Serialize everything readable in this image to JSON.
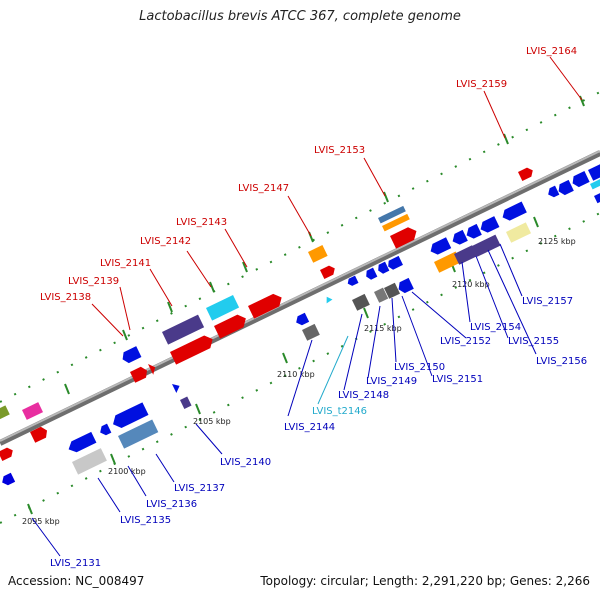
{
  "title": "Lactobacillus brevis ATCC 367, complete genome",
  "footer": {
    "accession": "Accession: NC_008497",
    "topology": "Topology: circular; Length: 2,291,220 bp; Genes: 2,266"
  },
  "colors": {
    "top_label": "#cc0000",
    "bottom_label": "#0000bb",
    "trna_label": "#22aacc",
    "backbone": "#888888",
    "tick": "#2a8a2a"
  },
  "ticks": [
    "2095 kbp",
    "2100 kbp",
    "2105 kbp",
    "2110 kbp",
    "2115 kbp",
    "2120 kbp",
    "2125 kbp"
  ],
  "top_labels": [
    "LVIS_2138",
    "LVIS_2139",
    "LVIS_2141",
    "LVIS_2142",
    "LVIS_2143",
    "LVIS_2147",
    "LVIS_2153",
    "LVIS_2159",
    "LVIS_2164"
  ],
  "bottom_labels": [
    "LVIS_2131",
    "LVIS_2135",
    "LVIS_2136",
    "LVIS_2137",
    "LVIS_2140",
    "LVIS_2144",
    "LVIS_t2146",
    "LVIS_2148",
    "LVIS_2149",
    "LVIS_2150",
    "LVIS_2151",
    "LVIS_2152",
    "LVIS_2154",
    "LVIS_2155",
    "LVIS_2156",
    "LVIS_2157"
  ]
}
